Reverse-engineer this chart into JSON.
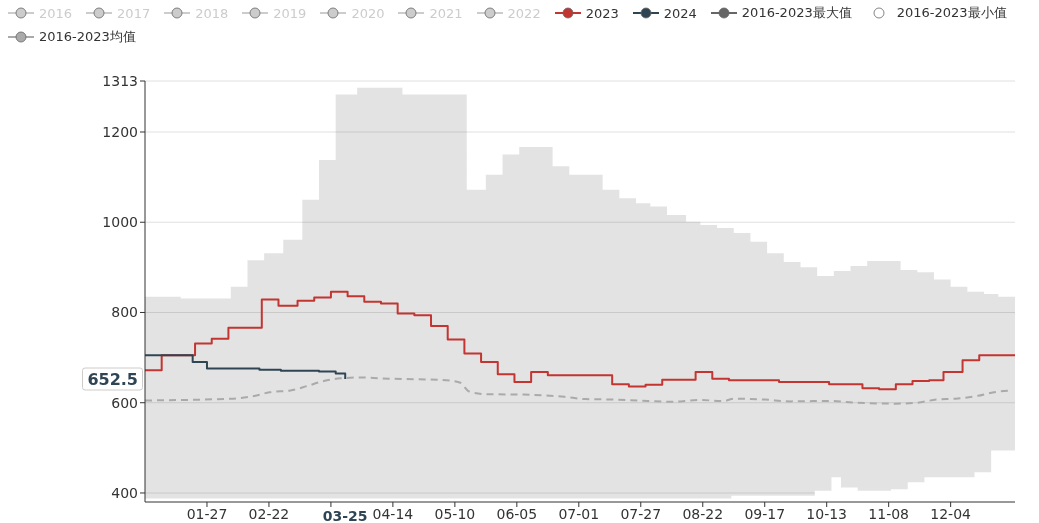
{
  "chart_data": {
    "type": "step",
    "legend": "top",
    "grid": "y",
    "marker": "none",
    "xlim": [
      "--01-01",
      "--12-31"
    ],
    "xticks": [
      {
        "value": "--01-27",
        "label": "01-27"
      },
      {
        "value": "--02-22",
        "label": "02-22"
      },
      {
        "value": "--03-19",
        "label": null
      },
      {
        "value": "--04-14",
        "label": "04-14"
      },
      {
        "value": "--05-10",
        "label": "05-10"
      },
      {
        "value": "--06-05",
        "label": "06-05"
      },
      {
        "value": "--07-01",
        "label": "07-01"
      },
      {
        "value": "--07-27",
        "label": "07-27"
      },
      {
        "value": "--08-22",
        "label": "08-22"
      },
      {
        "value": "--09-17",
        "label": "09-17"
      },
      {
        "value": "--10-13",
        "label": "10-13"
      },
      {
        "value": "--11-08",
        "label": "11-08"
      },
      {
        "value": "--12-04",
        "label": "12-04"
      }
    ],
    "ylim": [
      380,
      1313
    ],
    "yticks": [
      400,
      600,
      800,
      1000,
      1200,
      1313
    ],
    "annotations": [
      "03-25",
      "652.5"
    ],
    "series": [
      {
        "name": "2016",
        "color": "#cccccc"
      },
      {
        "name": "2017",
        "color": "#cccccc"
      },
      {
        "name": "2018",
        "color": "#cccccc"
      },
      {
        "name": "2019",
        "color": "#cccccc"
      },
      {
        "name": "2020",
        "color": "#cccccc"
      },
      {
        "name": "2021",
        "color": "#cccccc"
      },
      {
        "name": "2022",
        "color": "#cccccc"
      },
      {
        "name": "2023",
        "color": "#c23531",
        "x": [
          "--01-01",
          "--01-08",
          "--01-22",
          "--01-29",
          "--02-05",
          "--02-19",
          "--02-26",
          "--03-05",
          "--03-12",
          "--03-19",
          "--03-26",
          "--04-02",
          "--04-09",
          "--04-16",
          "--04-23",
          "--04-30",
          "--05-07",
          "--05-14",
          "--05-21",
          "--05-28",
          "--06-04",
          "--06-11",
          "--06-18",
          "--07-15",
          "--07-22",
          "--07-29",
          "--08-05",
          "--08-19",
          "--08-26",
          "--09-02",
          "--09-23",
          "--10-14",
          "--10-28",
          "--11-04",
          "--11-11",
          "--11-18",
          "--11-25",
          "--12-01",
          "--12-09",
          "--12-16",
          "--12-31"
        ],
        "values": [
          672,
          705,
          731,
          742,
          766,
          829,
          815,
          826,
          833,
          846,
          836,
          824,
          820,
          798,
          794,
          770,
          740,
          709,
          690,
          663,
          646,
          668,
          661,
          641,
          636,
          640,
          651,
          668,
          653,
          650,
          646,
          641,
          632,
          630,
          641,
          648,
          650,
          668,
          694,
          705,
          705
        ]
      },
      {
        "name": "2024",
        "color": "#2f4554",
        "x": [
          "--01-01",
          "--01-21",
          "--01-27",
          "--02-18",
          "--02-27",
          "--03-14",
          "--03-21",
          "--03-25"
        ],
        "values": [
          705,
          690,
          676,
          673,
          671,
          669,
          665,
          652.5
        ]
      },
      {
        "name": "2016-2023最大值",
        "type": "area",
        "color": "#666666",
        "x": [
          "--01-01",
          "--01-16",
          "--02-06",
          "--02-13",
          "--02-20",
          "--02-28",
          "--03-07",
          "--03-14",
          "--03-21",
          "--03-30",
          "--04-18",
          "--05-15",
          "--05-23",
          "--05-30",
          "--06-06",
          "--06-20",
          "--06-27",
          "--07-11",
          "--07-18",
          "--07-25",
          "--07-31",
          "--08-07",
          "--08-15",
          "--08-21",
          "--08-28",
          "--09-04",
          "--09-11",
          "--09-18",
          "--09-25",
          "--10-02",
          "--10-09",
          "--10-16",
          "--10-23",
          "--10-30",
          "--11-13",
          "--11-20",
          "--11-27",
          "--12-04",
          "--12-11",
          "--12-18",
          "--12-24",
          "--12-31"
        ],
        "values": [
          835,
          831,
          857,
          916,
          931,
          961,
          1050,
          1138,
          1283,
          1298,
          1283,
          1072,
          1105,
          1150,
          1167,
          1124,
          1105,
          1072,
          1053,
          1042,
          1035,
          1016,
          1001,
          994,
          987,
          976,
          957,
          931,
          912,
          900,
          881,
          892,
          903,
          914,
          894,
          889,
          873,
          857,
          846,
          841,
          835,
          835
        ]
      },
      {
        "name": "2016-2023最小值",
        "type": "area",
        "color": "#ffffff",
        "x": [
          "--01-01",
          "--09-03",
          "--10-08",
          "--10-15",
          "--10-19",
          "--10-26",
          "--11-09",
          "--11-16",
          "--11-23",
          "--12-14",
          "--12-21",
          "--12-31"
        ],
        "values": [
          388,
          394,
          405,
          435,
          412,
          405,
          408,
          424,
          435,
          446,
          494,
          494
        ]
      },
      {
        "name": "2016-2023均值",
        "type": "line",
        "line_style": "dashed",
        "color": "#aaaaaa",
        "x": [
          "--01-01",
          "--02-06",
          "--02-15",
          "--02-23",
          "--03-02",
          "--03-09",
          "--03-16",
          "--03-23",
          "--04-01",
          "--04-09",
          "--04-24",
          "--05-03",
          "--05-12",
          "--05-16",
          "--05-23",
          "--06-08",
          "--06-25",
          "--07-04",
          "--07-16",
          "--07-30",
          "--08-09",
          "--08-20",
          "--08-31",
          "--09-04",
          "--09-17",
          "--09-28",
          "--10-14",
          "--10-26",
          "--11-11",
          "--11-20",
          "--11-28",
          "--12-06",
          "--12-15",
          "--12-23",
          "--12-29"
        ],
        "values": [
          605,
          609,
          614,
          624,
          627,
          637,
          648,
          654,
          656,
          654,
          652,
          651,
          645,
          625,
          619,
          618,
          613,
          608,
          607,
          604,
          602,
          606,
          604,
          609,
          607,
          603,
          604,
          600,
          598,
          600,
          607,
          609,
          615,
          624,
          627
        ]
      }
    ]
  }
}
